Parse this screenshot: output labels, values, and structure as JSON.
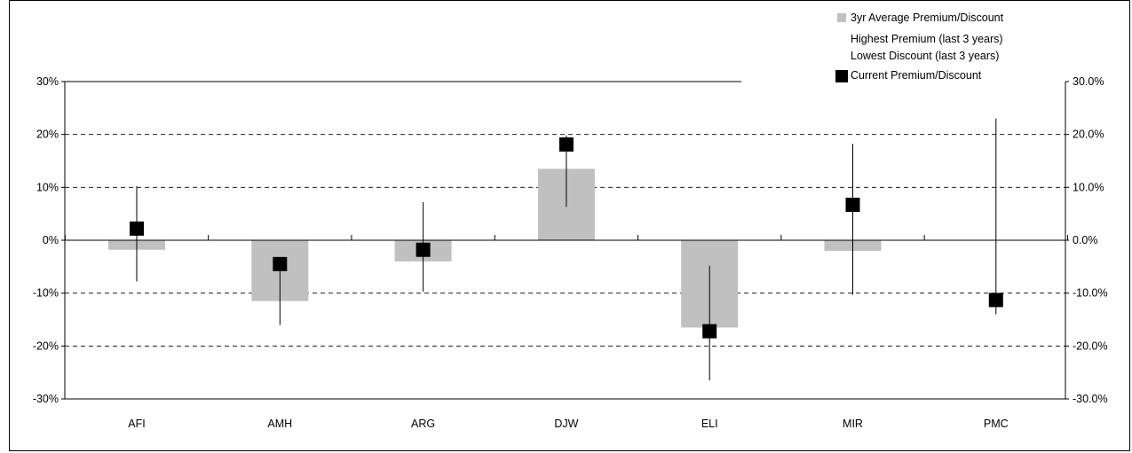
{
  "chart_data": {
    "type": "bar",
    "categories": [
      "AFI",
      "AMH",
      "ARG",
      "DJW",
      "ELI",
      "MIR",
      "PMC"
    ],
    "series": [
      {
        "name": "3yr Average Premium/Discount",
        "kind": "bar",
        "values": [
          -1.8,
          -11.5,
          -4.0,
          13.5,
          -16.5,
          -2.0,
          null
        ]
      },
      {
        "name": "Highest Premium (last 3 years)",
        "kind": "range-high",
        "values": [
          10.2,
          -4.5,
          7.2,
          19.8,
          -4.8,
          18.2,
          23.0
        ]
      },
      {
        "name": "Lowest Discount (last 3 years)",
        "kind": "range-low",
        "values": [
          -7.8,
          -16.0,
          -9.7,
          6.3,
          -26.5,
          -10.3,
          -14.0
        ]
      },
      {
        "name": "Current Premium/Discount",
        "kind": "marker",
        "values": [
          2.2,
          -4.5,
          -1.8,
          18.1,
          -17.2,
          6.7,
          -11.3
        ]
      }
    ],
    "left_axis": {
      "ylim": [
        -30,
        30
      ],
      "ticks": [
        "30%",
        "20%",
        "10%",
        "0%",
        "-10%",
        "-20%",
        "-30%"
      ]
    },
    "right_axis": {
      "ticks": [
        "30.0%",
        "20.0%",
        "10.0%",
        "0.0%",
        "-10.0%",
        "-20.0%",
        "-30.0%"
      ]
    },
    "grid": "dashed horizontal",
    "legend_position": "top-right",
    "colors": {
      "bar": "#c0c0c0",
      "marker": "#000000",
      "line": "#000000"
    }
  },
  "legend": {
    "items": [
      {
        "label": "3yr Average Premium/Discount",
        "swatch": "bar"
      },
      {
        "label": "Highest Premium (last 3 years)",
        "swatch": "none"
      },
      {
        "label": "Lowest Discount (last 3 years)",
        "swatch": "none"
      },
      {
        "label": "Current Premium/Discount",
        "swatch": "marker"
      }
    ]
  }
}
